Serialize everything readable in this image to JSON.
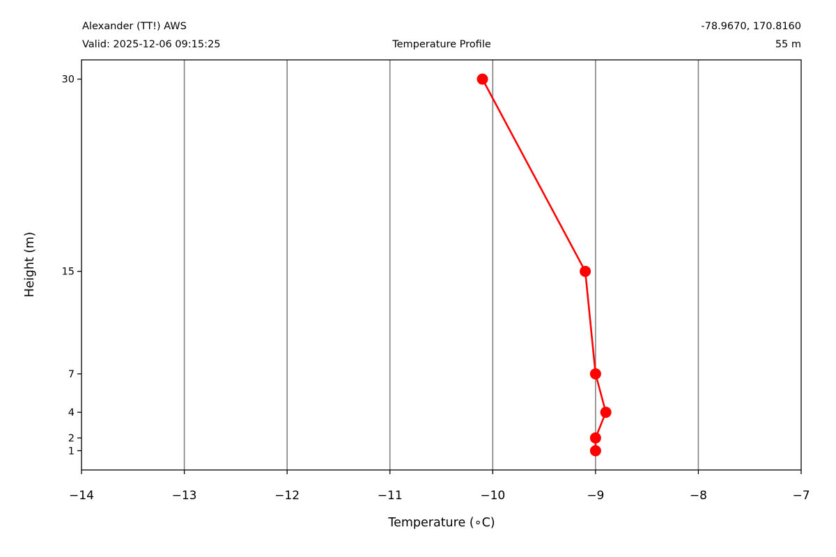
{
  "header": {
    "station": "Alexander (TT!) AWS",
    "valid": "Valid: 2025-12-06 09:15:25",
    "title": "Temperature Profile",
    "coords": "-78.9670, 170.8160",
    "elevation": "55 m"
  },
  "chart_data": {
    "type": "line",
    "title": "Temperature Profile",
    "xlabel": "Temperature (∘C)",
    "ylabel": "Height (m)",
    "xlim": [
      -14,
      -7
    ],
    "ylim": [
      -0.5,
      31.5
    ],
    "xticks": [
      -14,
      -13,
      -12,
      -11,
      -10,
      -9,
      -8,
      -7
    ],
    "xtick_labels": [
      "−14",
      "−13",
      "−12",
      "−11",
      "−10",
      "−9",
      "−8",
      "−7"
    ],
    "yticks": [
      1,
      2,
      4,
      7,
      15,
      30
    ],
    "ytick_labels": [
      "1",
      "2",
      "4",
      "7",
      "15",
      "30"
    ],
    "grid": "x-major",
    "series": [
      {
        "color": "#ff0000",
        "marker": "circle",
        "points": [
          {
            "height": 1,
            "temperature": -9.0
          },
          {
            "height": 2,
            "temperature": -9.0
          },
          {
            "height": 4,
            "temperature": -8.9
          },
          {
            "height": 7,
            "temperature": -9.0
          },
          {
            "height": 15,
            "temperature": -9.1
          },
          {
            "height": 30,
            "temperature": -10.1
          }
        ]
      }
    ]
  },
  "colors": {
    "line": "#ff0000",
    "grid": "#808080",
    "axes": "#000000"
  }
}
